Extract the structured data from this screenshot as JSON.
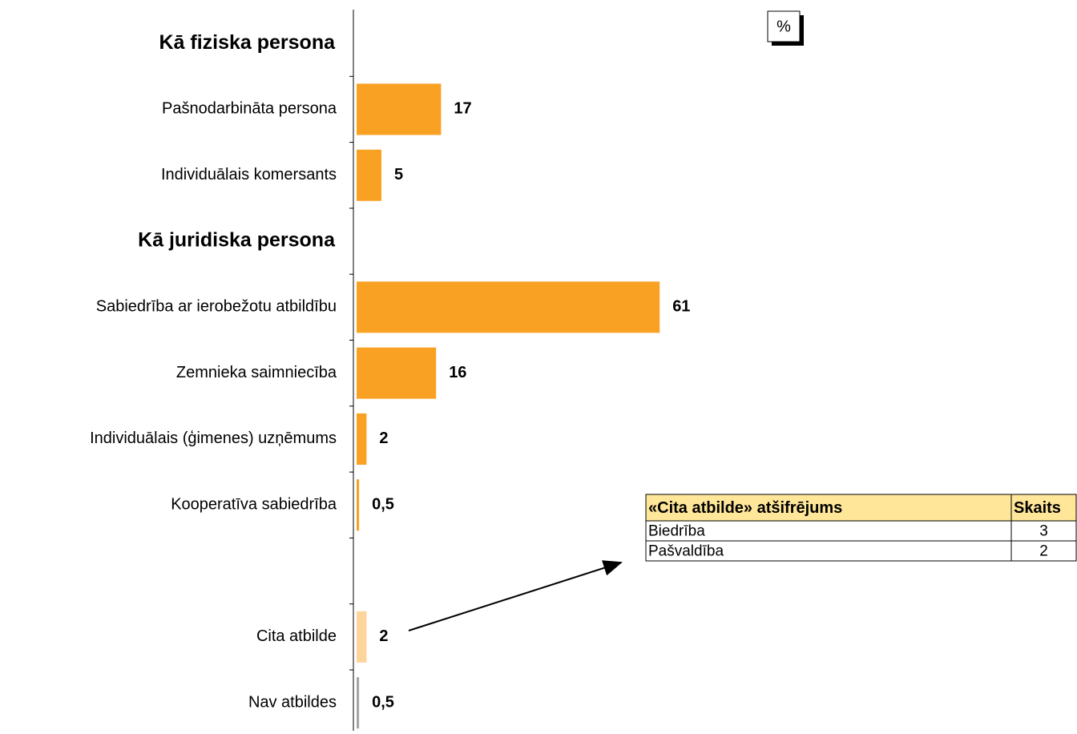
{
  "chart_data": {
    "type": "hbar",
    "unit_label": "%",
    "categories": [
      "Kā fiziska persona",
      "Pašnodarbināta persona",
      "Individuālais komersants",
      "Kā juridiska persona",
      "Sabiedrība ar ierobežotu atbildību",
      "Zemnieka saimniecība",
      "Individuālais (ģimenes) uzņēmums",
      "Kooperatīva sabiedrība",
      null,
      "Cita atbilde",
      "Nav atbildes"
    ],
    "values": [
      null,
      17,
      5,
      null,
      61,
      16,
      2,
      0.5,
      null,
      2,
      0.5
    ],
    "value_labels": [
      null,
      "17",
      "5",
      null,
      "61",
      "16",
      "2",
      "0,5",
      null,
      "2",
      "0,5"
    ],
    "colors": [
      null,
      "#f9a123",
      "#f9a123",
      null,
      "#f9a123",
      "#f9a123",
      "#f9a123",
      "#f9a123",
      null,
      "#fdd49c",
      "#a6a6a6"
    ],
    "xlim": [
      0,
      100
    ]
  },
  "table": {
    "header": [
      "«Cita atbilde» atšifrējums",
      "Skaits"
    ],
    "rows": [
      [
        "Biedrība",
        3
      ],
      [
        "Pašvaldība",
        2
      ]
    ]
  }
}
